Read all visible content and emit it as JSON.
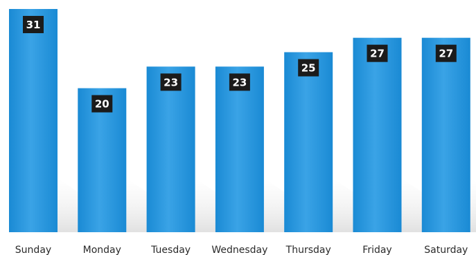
{
  "chart_data": {
    "type": "bar",
    "title": "",
    "xlabel": "",
    "ylabel": "",
    "categories": [
      "Sunday",
      "Monday",
      "Tuesday",
      "Wednesday",
      "Thursday",
      "Friday",
      "Saturday"
    ],
    "values": [
      31,
      20,
      23,
      23,
      25,
      27,
      27
    ],
    "ylim": [
      0,
      31
    ],
    "grid": false,
    "legend": "none",
    "bar_color": "#1a8ad4",
    "bar_color_light": "#3aa3e6",
    "label_box_color": "#1b1b1b",
    "label_text_color": "#ffffff",
    "data_labels": true
  }
}
